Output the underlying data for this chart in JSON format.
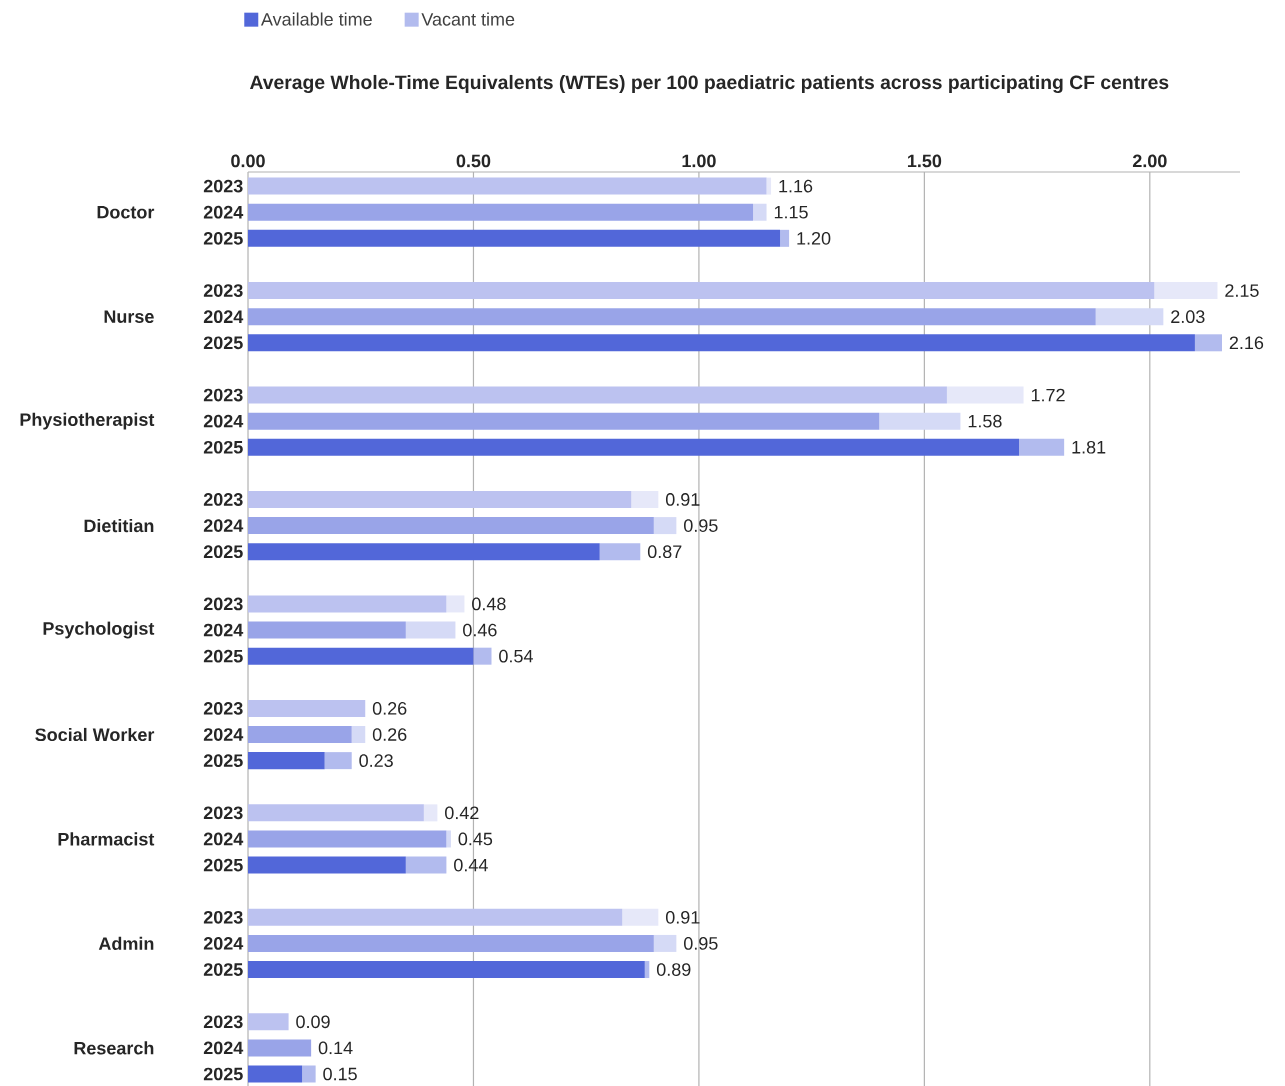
{
  "chart_data": {
    "type": "bar",
    "orientation": "horizontal",
    "stacked": true,
    "title": "Average Whole-Time Equivalents (WTEs) per 100 paediatric patients across participating CF centres",
    "categories": [
      "2023",
      "2024",
      "2025",
      "2023",
      "2024",
      "2025",
      "2023",
      "2024",
      "2025",
      "2023",
      "2024",
      "2025",
      "2023",
      "2024",
      "2025",
      "2023",
      "2024",
      "2025",
      "2023",
      "2024",
      "2025",
      "2023",
      "2024",
      "2025",
      "2023",
      "2024",
      "2025"
    ],
    "annotations": [
      "Doctor",
      "Nurse",
      "Physiotherapist",
      "Dietitian",
      "Psychologist",
      "Social Worker",
      "Pharmacist",
      "Admin",
      "Research"
    ],
    "series": [
      {
        "name": "Available time",
        "color": "#5267d9",
        "colors": [
          "#bcc2f0",
          "#99a4e8",
          "#5267d9",
          "#bcc2f0",
          "#99a4e8",
          "#5267d9",
          "#bcc2f0",
          "#99a4e8",
          "#5267d9",
          "#bcc2f0",
          "#99a4e8",
          "#5267d9",
          "#bcc2f0",
          "#99a4e8",
          "#5267d9",
          "#bcc2f0",
          "#99a4e8",
          "#5267d9",
          "#bcc2f0",
          "#99a4e8",
          "#5267d9",
          "#bcc2f0",
          "#99a4e8",
          "#5267d9",
          "#bcc2f0",
          "#99a4e8",
          "#5267d9"
        ],
        "values": [
          1.15,
          1.12,
          1.18,
          2.01,
          1.88,
          2.1,
          1.55,
          1.4,
          1.71,
          0.85,
          0.9,
          0.78,
          0.44,
          0.35,
          0.5,
          0.26,
          0.23,
          0.17,
          0.39,
          0.44,
          0.35,
          0.83,
          0.9,
          0.88,
          0.09,
          0.14,
          0.12
        ]
      },
      {
        "name": "Vacant time",
        "color": "#b2bbee",
        "colors": [
          "#e6e8f9",
          "#d5daf6",
          "#b2bbee",
          "#e6e8f9",
          "#d5daf6",
          "#b2bbee",
          "#e6e8f9",
          "#d5daf6",
          "#b2bbee",
          "#e6e8f9",
          "#d5daf6",
          "#b2bbee",
          "#e6e8f9",
          "#d5daf6",
          "#b2bbee",
          "#e6e8f9",
          "#d5daf6",
          "#b2bbee",
          "#e6e8f9",
          "#d5daf6",
          "#b2bbee",
          "#e6e8f9",
          "#d5daf6",
          "#b2bbee",
          "#e6e8f9",
          "#d5daf6",
          "#b2bbee"
        ],
        "values": [
          0.01,
          0.03,
          0.02,
          0.14,
          0.15,
          0.06,
          0.17,
          0.18,
          0.1,
          0.06,
          0.05,
          0.09,
          0.04,
          0.11,
          0.04,
          0,
          0.03,
          0.06,
          0.03,
          0.01,
          0.09,
          0.08,
          0.05,
          0.01,
          0,
          0,
          0.03
        ]
      }
    ],
    "totals": [
      "1.16",
      "1.15",
      "1.20",
      "2.15",
      "2.03",
      "2.16",
      "1.72",
      "1.58",
      "1.81",
      "0.91",
      "0.95",
      "0.87",
      "0.48",
      "0.46",
      "0.54",
      "0.26",
      "0.26",
      "0.23",
      "0.42",
      "0.45",
      "0.44",
      "0.91",
      "0.95",
      "0.89",
      "0.09",
      "0.14",
      "0.15"
    ],
    "xticks": [
      {
        "value": 0,
        "label": "0.00"
      },
      {
        "value": 0.5,
        "label": "0.50"
      },
      {
        "value": 1,
        "label": "1.00"
      },
      {
        "value": 1.5,
        "label": "1.50"
      },
      {
        "value": 2,
        "label": "2.00"
      }
    ],
    "xlim": [
      0,
      2.2
    ],
    "grid": "x",
    "legend": "top"
  }
}
